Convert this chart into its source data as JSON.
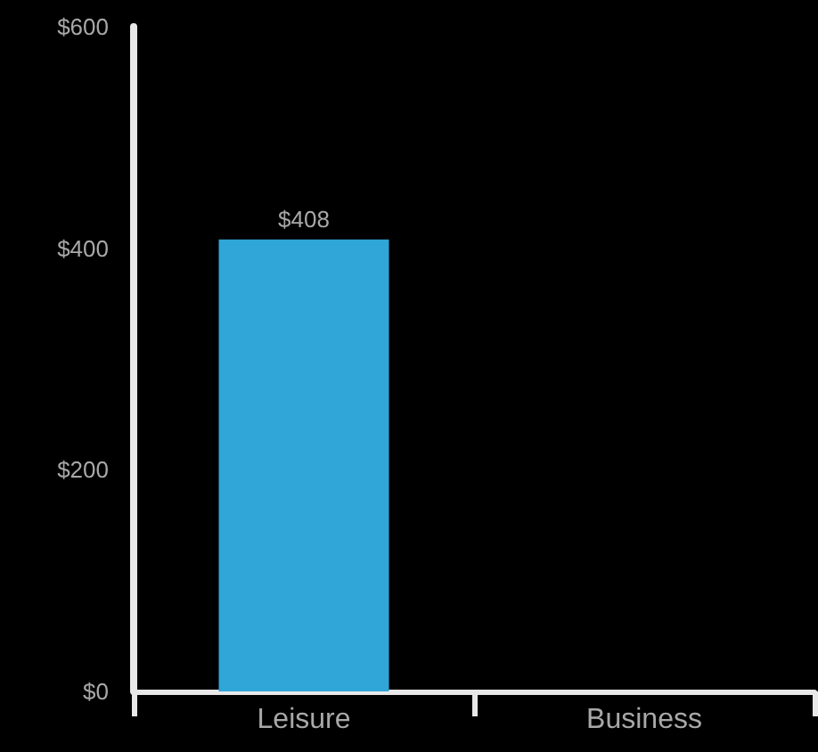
{
  "chart_data": {
    "type": "bar",
    "categories": [
      "Leisure",
      "Business"
    ],
    "values": [
      408,
      null
    ],
    "value_labels": [
      "$408",
      null
    ],
    "color": "#2fa5d8",
    "ylim": [
      0,
      600
    ],
    "yticks": [
      {
        "value": 0,
        "label": "$0"
      },
      {
        "value": 200,
        "label": "$200"
      },
      {
        "value": 400,
        "label": "$400"
      },
      {
        "value": 600,
        "label": "$600"
      }
    ],
    "grid": false
  }
}
